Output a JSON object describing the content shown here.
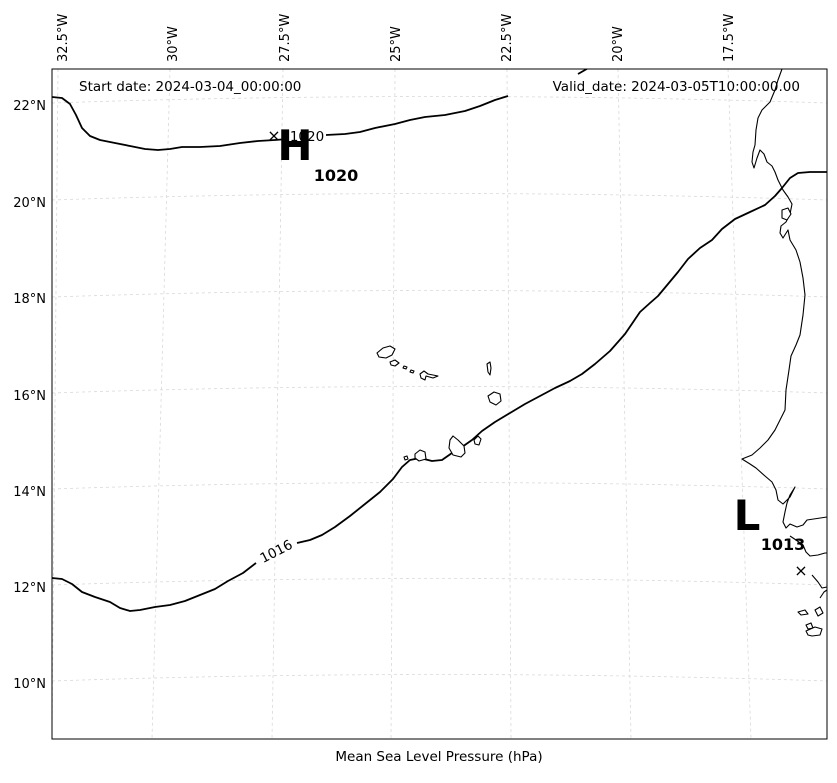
{
  "map": {
    "caption": "Mean Sea Level Pressure (hPa)",
    "start_date": "Start date: 2024-03-04_00:00:00",
    "valid_date": "Valid_date: 2024-03-05T10:00:00.00",
    "lon_ticks": [
      "32.5°W",
      "30°W",
      "27.5°W",
      "25°W",
      "22.5°W",
      "20°W",
      "17.5°W"
    ],
    "lat_ticks": [
      "22°N",
      "20°N",
      "18°N",
      "16°N",
      "14°N",
      "12°N",
      "10°N"
    ],
    "contours": [
      {
        "level": 1020,
        "label": "1020"
      },
      {
        "level": 1016,
        "label": "1016"
      }
    ],
    "high": {
      "symbol": "H",
      "value": "1020",
      "marker": "×"
    },
    "low": {
      "symbol": "L",
      "value": "1013",
      "marker": "×"
    },
    "colors": {
      "isobar": "#000000",
      "grid": "#d9d9d9",
      "land": "#ffffff"
    }
  }
}
